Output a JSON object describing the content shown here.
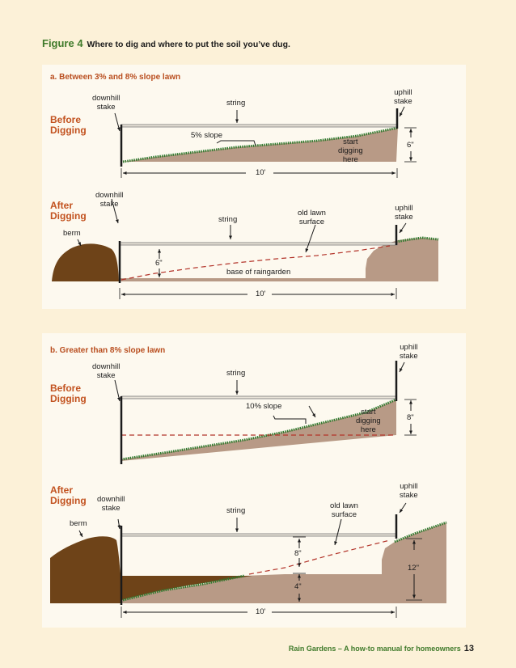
{
  "figure": {
    "number": "Figure 4",
    "caption": "Where to dig and where to put the soil you’ve dug."
  },
  "section_a": {
    "title": "a. Between 3% and 8% slope lawn",
    "before": {
      "phase": "Before\nDigging",
      "downhill_stake": "downhill\nstake",
      "string": "string",
      "uphill_stake": "uphill\nstake",
      "slope": "5% slope",
      "start": "start\ndigging\nhere",
      "depth": "6\"",
      "width": "10'"
    },
    "after": {
      "phase": "After\nDigging",
      "downhill_stake": "downhill\nstake",
      "string": "string",
      "old_lawn": "old lawn\nsurface",
      "uphill_stake": "uphill\nstake",
      "berm": "berm",
      "depth": "6\"",
      "base": "base of raingarden",
      "width": "10'"
    }
  },
  "section_b": {
    "title": "b. Greater than 8% slope lawn",
    "before": {
      "phase": "Before\nDigging",
      "downhill_stake": "downhill\nstake",
      "string": "string",
      "uphill_stake": "uphill\nstake",
      "slope": "10% slope",
      "start": "start\ndigging\nhere",
      "depth": "8\""
    },
    "after": {
      "phase": "After\nDigging",
      "downhill_stake": "downhill\nstake",
      "string": "string",
      "old_lawn": "old lawn\nsurface",
      "uphill_stake": "uphill\nstake",
      "berm": "berm",
      "depth_upper": "8\"",
      "depth_lower": "4\"",
      "depth_total": "12\"",
      "width": "10'"
    }
  },
  "footer": {
    "text": "Rain Gardens – A how-to manual for homeowners",
    "page": "13"
  },
  "colors": {
    "soil": "#b89a86",
    "berm": "#6e4318",
    "grass": "#2f7a2e",
    "dashed": "#b3342a",
    "accent": "#c2521f"
  }
}
